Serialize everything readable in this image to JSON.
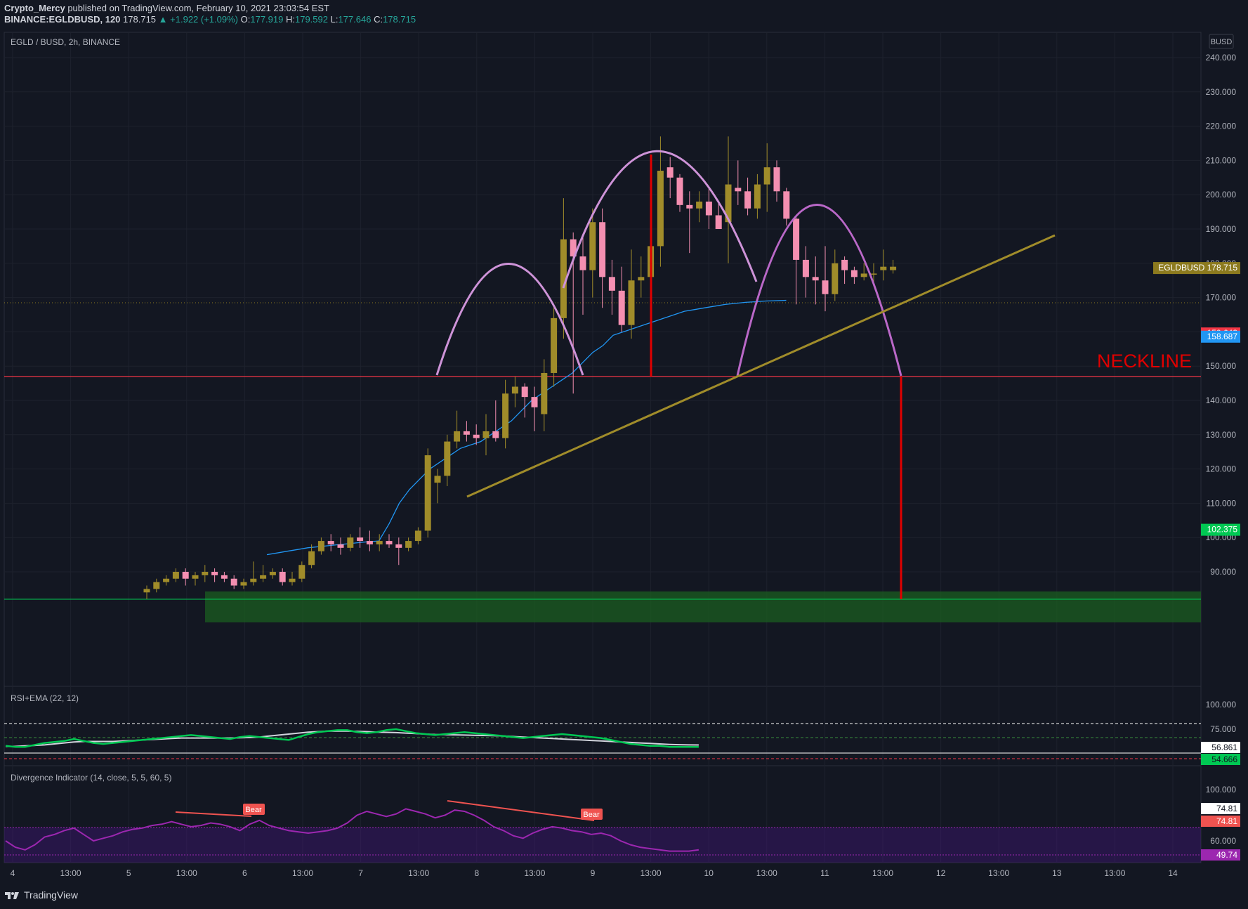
{
  "header": {
    "line1_author": "Crypto_Mercy",
    "line1_rest": "published on TradingView.com, February 10, 2021 23:03:54 EST",
    "symbol": "BINANCE:EGLDBUSD, 120",
    "last": "178.715",
    "change": "▲ +1.922 (+1.09%)",
    "o_label": "O:",
    "o": "177.919",
    "h_label": "H:",
    "h": "179.592",
    "l_label": "L:",
    "l": "177.646",
    "c_label": "C:",
    "c": "178.715"
  },
  "footer": {
    "brand": "TradingView"
  },
  "chart_data": {
    "type": "candlestick",
    "title": "EGLD / BUSD, 2h, BINANCE",
    "currency": "BUSD",
    "ylim": [
      82,
      245
    ],
    "y_ticks": [
      "240.000",
      "230.000",
      "220.000",
      "210.000",
      "200.000",
      "190.000",
      "180.000",
      "170.000",
      "160.000",
      "150.000",
      "140.000",
      "130.000",
      "120.000",
      "110.000",
      "100.000",
      "90.000"
    ],
    "x_ticks": [
      "4",
      "13:00",
      "5",
      "13:00",
      "6",
      "13:00",
      "7",
      "13:00",
      "8",
      "13:00",
      "9",
      "13:00",
      "10",
      "13:00",
      "11",
      "13:00",
      "12",
      "13:00",
      "13",
      "13:00",
      "14"
    ],
    "price_labels": [
      {
        "text": "EGLDBUSD",
        "value": "178.715",
        "color": "#8c7a1e"
      },
      {
        "text": "",
        "value": "159.643",
        "color": "#f23645"
      },
      {
        "text": "",
        "value": "158.687",
        "color": "#2196f3"
      },
      {
        "text": "",
        "value": "102.375",
        "color": "#00c853"
      }
    ],
    "annotation": "NECKLINE",
    "candles": [
      [
        84,
        86,
        82,
        85
      ],
      [
        85,
        88,
        84,
        87
      ],
      [
        87,
        89,
        86,
        88
      ],
      [
        88,
        91,
        87,
        90
      ],
      [
        90,
        91,
        86,
        88
      ],
      [
        88,
        90,
        86,
        89
      ],
      [
        89,
        92,
        87,
        90
      ],
      [
        90,
        91,
        87,
        89
      ],
      [
        89,
        90,
        87,
        88
      ],
      [
        88,
        89,
        85,
        86
      ],
      [
        86,
        88,
        85,
        87
      ],
      [
        87,
        93,
        86,
        88
      ],
      [
        88,
        92,
        87,
        89
      ],
      [
        89,
        91,
        88,
        90
      ],
      [
        90,
        91,
        86,
        87
      ],
      [
        87,
        90,
        86,
        88
      ],
      [
        88,
        93,
        87,
        92
      ],
      [
        92,
        98,
        91,
        96
      ],
      [
        96,
        100,
        95,
        99
      ],
      [
        99,
        101,
        96,
        98
      ],
      [
        98,
        100,
        95,
        97
      ],
      [
        97,
        101,
        96,
        100
      ],
      [
        100,
        103,
        97,
        99
      ],
      [
        99,
        102,
        96,
        98
      ],
      [
        98,
        101,
        96,
        99
      ],
      [
        99,
        101,
        97,
        98
      ],
      [
        98,
        100,
        92,
        97
      ],
      [
        97,
        100,
        96,
        99
      ],
      [
        99,
        103,
        98,
        102
      ],
      [
        102,
        126,
        100,
        124
      ],
      [
        116,
        120,
        110,
        118
      ],
      [
        118,
        130,
        115,
        128
      ],
      [
        128,
        137,
        126,
        131
      ],
      [
        131,
        134,
        128,
        130
      ],
      [
        130,
        133,
        127,
        129
      ],
      [
        129,
        136,
        124,
        131
      ],
      [
        131,
        140,
        128,
        129
      ],
      [
        129,
        146,
        126,
        142
      ],
      [
        142,
        147,
        138,
        144
      ],
      [
        144,
        145,
        135,
        141
      ],
      [
        141,
        144,
        131,
        138
      ],
      [
        136,
        152,
        131,
        148
      ],
      [
        148,
        167,
        144,
        164
      ],
      [
        164,
        199,
        158,
        187
      ],
      [
        187,
        189,
        142,
        182
      ],
      [
        182,
        188,
        165,
        178
      ],
      [
        178,
        196,
        170,
        192
      ],
      [
        192,
        196,
        167,
        176
      ],
      [
        176,
        181,
        165,
        172
      ],
      [
        172,
        179,
        160,
        162
      ],
      [
        162,
        184,
        158,
        175
      ],
      [
        175,
        182,
        170,
        176
      ],
      [
        176,
        187,
        173,
        185
      ],
      [
        185,
        217,
        179,
        207
      ],
      [
        208,
        211,
        199,
        205
      ],
      [
        205,
        206,
        195,
        197
      ],
      [
        197,
        201,
        183,
        196
      ],
      [
        196,
        201,
        192,
        198
      ],
      [
        198,
        202,
        190,
        194
      ],
      [
        194,
        198,
        190,
        190
      ],
      [
        192,
        217,
        180,
        203
      ],
      [
        202,
        210,
        197,
        201
      ],
      [
        201,
        205,
        194,
        196
      ],
      [
        196,
        206,
        193,
        203
      ],
      [
        203,
        215,
        195,
        208
      ],
      [
        208,
        210,
        198,
        201
      ],
      [
        201,
        202,
        191,
        193
      ],
      [
        193,
        194,
        168,
        181
      ],
      [
        181,
        185,
        170,
        176
      ],
      [
        176,
        182,
        168,
        175
      ],
      [
        175,
        185,
        166,
        171
      ],
      [
        171,
        184,
        169,
        180
      ],
      [
        181,
        182,
        174,
        178
      ],
      [
        178,
        179,
        174,
        176
      ],
      [
        176,
        180,
        175,
        177
      ],
      [
        177,
        180,
        174,
        177
      ],
      [
        178,
        184,
        175,
        179
      ],
      [
        178,
        181,
        177,
        179
      ]
    ],
    "ema": [
      95,
      95.5,
      96,
      96.5,
      97,
      97.3,
      97.6,
      97.9,
      98.2,
      98.5,
      98.8,
      99,
      104,
      110,
      114,
      117,
      120,
      122,
      124,
      126,
      127,
      128,
      130,
      132,
      134,
      137,
      140,
      142,
      144,
      146,
      148,
      151,
      154,
      156,
      159,
      160,
      161,
      162,
      163,
      164,
      165,
      166,
      166.5,
      167,
      167.5,
      168,
      168.3,
      168.6,
      168.8,
      169,
      169.1,
      169.2
    ],
    "rsi": {
      "label": "RSI+EMA (22, 12)",
      "ylim": [
        40,
        100
      ],
      "ticks": [
        "100.000",
        "75.000"
      ],
      "value_white": "56.861",
      "value_green": "54.666",
      "rsi_values": [
        58,
        57,
        57,
        59,
        61,
        62,
        63,
        65,
        63,
        61,
        60,
        61,
        62,
        63,
        64,
        65,
        66,
        67,
        68,
        69,
        68,
        67,
        66,
        65,
        67,
        68,
        67,
        66,
        65,
        64,
        67,
        70,
        72,
        73,
        74,
        74,
        72,
        71,
        72,
        74,
        75,
        73,
        71,
        70,
        69,
        70,
        71,
        72,
        71,
        70,
        69,
        68,
        67,
        66,
        67,
        68,
        69,
        70,
        69,
        68,
        67,
        66,
        64,
        62,
        60,
        59,
        58,
        58,
        57,
        57,
        57,
        57
      ],
      "ema_values": [
        57.5,
        57.5,
        58,
        58.5,
        59,
        60,
        61,
        62,
        62.5,
        62.5,
        62.5,
        62.5,
        63,
        63.5,
        64,
        64.5,
        65,
        65.5,
        66,
        66,
        66,
        66,
        66,
        66,
        66.3,
        66.5,
        67,
        68,
        69,
        70,
        71,
        72,
        72.5,
        73,
        73,
        73,
        72.8,
        72.5,
        72,
        71.8,
        71.5,
        71,
        70.5,
        70,
        69.6,
        69.4,
        69.2,
        69,
        68.8,
        68.6,
        68.4,
        68,
        67.5,
        67,
        66.5,
        66,
        65.5,
        65,
        64.5,
        64,
        63.5,
        63,
        62.5,
        62,
        61.5,
        61,
        60.5,
        60,
        59.5,
        59.2,
        59,
        58.9
      ]
    },
    "divergence": {
      "label": "Divergence Indicator (14, close, 5, 5, 60, 5)",
      "ylim": [
        40,
        105
      ],
      "ticks": [
        "100.000",
        "60.000"
      ],
      "value_white": "74.81",
      "value_red": "74.81",
      "value_purple": "49.74",
      "bear_labels": [
        "Bear",
        "Bear"
      ],
      "values": [
        60,
        55,
        53,
        57,
        63,
        65,
        68,
        70,
        65,
        60,
        62,
        64,
        67,
        69,
        70,
        72,
        73,
        75,
        73,
        71,
        72,
        74,
        73,
        71,
        68,
        73,
        76,
        72,
        70,
        68,
        67,
        66,
        67,
        68,
        70,
        74,
        80,
        83,
        81,
        79,
        81,
        85,
        83,
        81,
        78,
        80,
        84,
        83,
        80,
        76,
        71,
        68,
        64,
        62,
        66,
        69,
        71,
        70,
        68,
        67,
        65,
        66,
        64,
        60,
        57,
        55,
        54,
        53,
        52,
        52,
        52,
        53
      ]
    }
  }
}
